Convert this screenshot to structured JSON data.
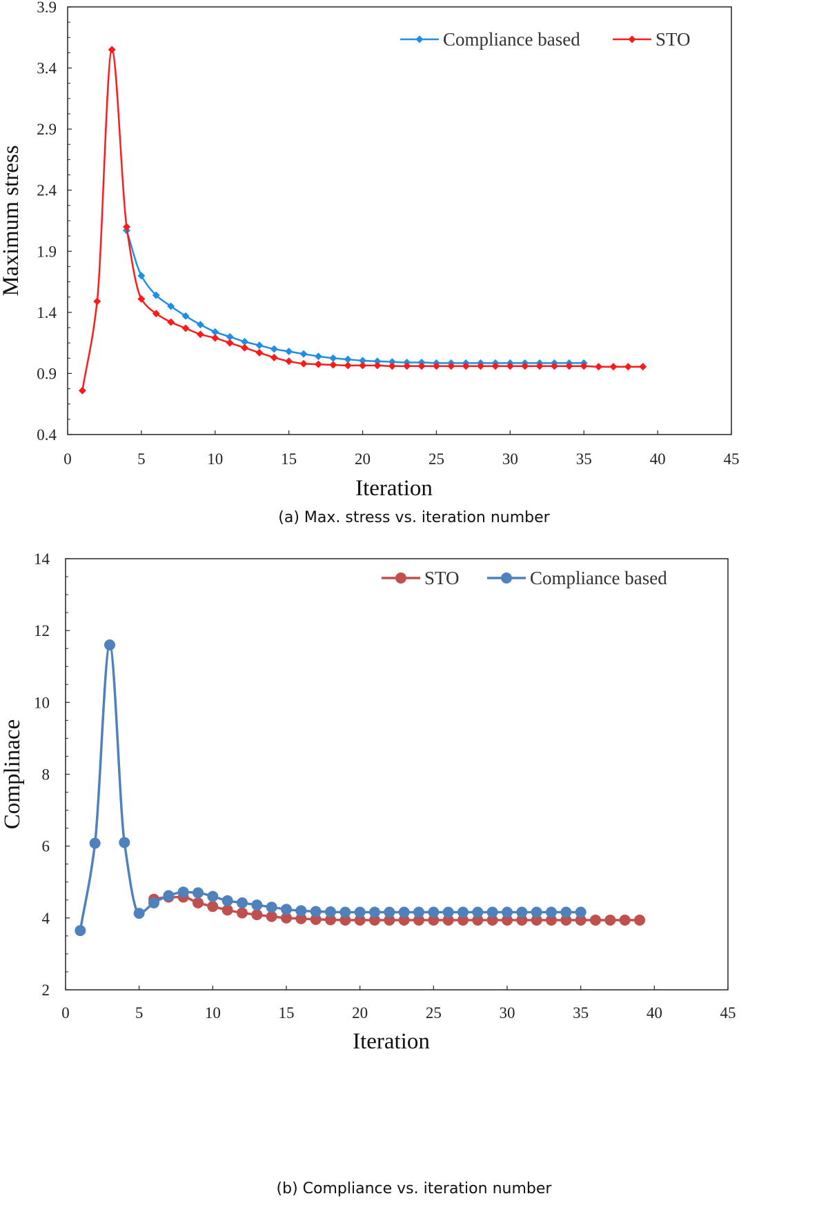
{
  "chart_data": [
    {
      "type": "line",
      "caption": "(a)  Max. stress vs. iteration number",
      "xlabel": "Iteration",
      "ylabel": "Maximum stress",
      "xlim": [
        0,
        45
      ],
      "ylim": [
        0.4,
        3.9
      ],
      "xticks": [
        0,
        5,
        10,
        15,
        20,
        25,
        30,
        35,
        40,
        45
      ],
      "xtick_labels": [
        "0",
        "5",
        "10",
        "15",
        "20",
        "25",
        "30",
        "35",
        "40",
        "45"
      ],
      "yticks": [
        0.4,
        0.9,
        1.4,
        1.9,
        2.4,
        2.9,
        3.4,
        3.9
      ],
      "ytick_labels": [
        "0.4",
        "0.9",
        "1.4",
        "1.9",
        "2.4",
        "2.9",
        "3.4",
        "3.9"
      ],
      "grid": false,
      "legend_position": "top-right",
      "marker": "diamond",
      "series": [
        {
          "name": "Compliance based",
          "color": "#1f8fe6",
          "x": [
            4,
            5,
            6,
            7,
            8,
            9,
            10,
            11,
            12,
            13,
            14,
            15,
            16,
            17,
            18,
            19,
            20,
            21,
            22,
            23,
            24,
            25,
            26,
            27,
            28,
            29,
            30,
            31,
            32,
            33,
            34,
            35
          ],
          "values": [
            2.07,
            1.7,
            1.54,
            1.45,
            1.37,
            1.3,
            1.24,
            1.2,
            1.16,
            1.13,
            1.1,
            1.08,
            1.06,
            1.04,
            1.025,
            1.015,
            1.005,
            1.0,
            0.995,
            0.99,
            0.99,
            0.985,
            0.985,
            0.985,
            0.985,
            0.985,
            0.985,
            0.985,
            0.985,
            0.985,
            0.985,
            0.985
          ]
        },
        {
          "name": "STO",
          "color": "#ff1a1a",
          "x": [
            1,
            2,
            3,
            4,
            5,
            6,
            7,
            8,
            9,
            10,
            11,
            12,
            13,
            14,
            15,
            16,
            17,
            18,
            19,
            20,
            21,
            22,
            23,
            24,
            25,
            26,
            27,
            28,
            29,
            30,
            31,
            32,
            33,
            34,
            35,
            36,
            37,
            38,
            39
          ],
          "values": [
            0.76,
            1.49,
            3.55,
            2.1,
            1.51,
            1.39,
            1.32,
            1.27,
            1.22,
            1.19,
            1.15,
            1.11,
            1.07,
            1.03,
            1.0,
            0.98,
            0.975,
            0.97,
            0.965,
            0.965,
            0.965,
            0.96,
            0.96,
            0.96,
            0.96,
            0.96,
            0.96,
            0.96,
            0.96,
            0.96,
            0.96,
            0.96,
            0.96,
            0.96,
            0.96,
            0.955,
            0.955,
            0.955,
            0.955
          ]
        }
      ]
    },
    {
      "type": "line",
      "caption": "(b)  Compliance vs. iteration number",
      "xlabel": "Iteration",
      "ylabel": "Complinace",
      "xlim": [
        0,
        45
      ],
      "ylim": [
        2,
        14
      ],
      "xticks": [
        0,
        5,
        10,
        15,
        20,
        25,
        30,
        35,
        40,
        45
      ],
      "xtick_labels": [
        "0",
        "5",
        "10",
        "15",
        "20",
        "25",
        "30",
        "35",
        "40",
        "45"
      ],
      "yticks": [
        2,
        4,
        6,
        8,
        10,
        12,
        14
      ],
      "ytick_labels": [
        "2",
        "4",
        "6",
        "8",
        "10",
        "12",
        "14"
      ],
      "grid": false,
      "legend_position": "top-right",
      "marker": "circle",
      "series": [
        {
          "name": "STO",
          "color": "#c0504d",
          "x": [
            6,
            7,
            8,
            9,
            10,
            11,
            12,
            13,
            14,
            15,
            16,
            17,
            18,
            19,
            20,
            21,
            22,
            23,
            24,
            25,
            26,
            27,
            28,
            29,
            30,
            31,
            32,
            33,
            34,
            35,
            36,
            37,
            38,
            39
          ],
          "values": [
            4.52,
            4.58,
            4.58,
            4.42,
            4.32,
            4.22,
            4.14,
            4.09,
            4.04,
            4.0,
            3.98,
            3.96,
            3.95,
            3.94,
            3.94,
            3.94,
            3.94,
            3.94,
            3.94,
            3.94,
            3.94,
            3.94,
            3.94,
            3.94,
            3.94,
            3.94,
            3.94,
            3.94,
            3.94,
            3.94,
            3.94,
            3.94,
            3.94,
            3.94
          ]
        },
        {
          "name": "Compliance based",
          "color": "#4f81bd",
          "x": [
            1,
            2,
            3,
            4,
            5,
            6,
            7,
            8,
            9,
            10,
            11,
            12,
            13,
            14,
            15,
            16,
            17,
            18,
            19,
            20,
            21,
            22,
            23,
            24,
            25,
            26,
            27,
            28,
            29,
            30,
            31,
            32,
            33,
            34,
            35
          ],
          "values": [
            3.65,
            6.08,
            11.6,
            6.1,
            4.13,
            4.42,
            4.62,
            4.72,
            4.7,
            4.6,
            4.48,
            4.42,
            4.36,
            4.3,
            4.24,
            4.2,
            4.18,
            4.17,
            4.16,
            4.16,
            4.16,
            4.16,
            4.16,
            4.16,
            4.16,
            4.16,
            4.16,
            4.16,
            4.16,
            4.16,
            4.16,
            4.16,
            4.16,
            4.16,
            4.16
          ]
        }
      ]
    }
  ]
}
